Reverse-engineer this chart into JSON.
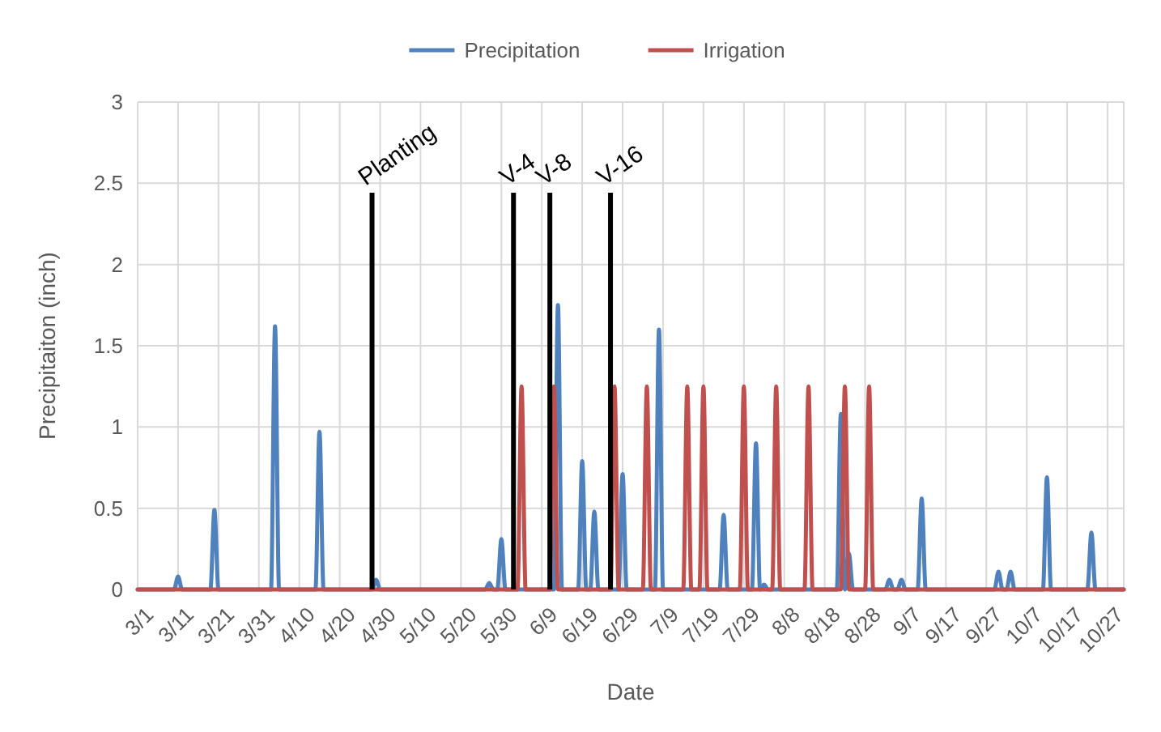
{
  "chart_data": {
    "type": "line",
    "xlabel": "Date",
    "ylabel": "Precipitaiton (inch)",
    "xlim": [
      "--03-01",
      "--10-31"
    ],
    "xticks": [
      {
        "value": "--03-01",
        "label": "3/1"
      },
      {
        "value": "--03-11",
        "label": "3/11"
      },
      {
        "value": "--03-21",
        "label": "3/21"
      },
      {
        "value": "--03-31",
        "label": "3/31"
      },
      {
        "value": "--04-10",
        "label": "4/10"
      },
      {
        "value": "--04-20",
        "label": "4/20"
      },
      {
        "value": "--04-30",
        "label": "4/30"
      },
      {
        "value": "--05-10",
        "label": "5/10"
      },
      {
        "value": "--05-20",
        "label": "5/20"
      },
      {
        "value": "--05-30",
        "label": "5/30"
      },
      {
        "value": "--06-09",
        "label": "6/9"
      },
      {
        "value": "--06-19",
        "label": "6/19"
      },
      {
        "value": "--06-29",
        "label": "6/29"
      },
      {
        "value": "--07-09",
        "label": "7/9"
      },
      {
        "value": "--07-19",
        "label": "7/19"
      },
      {
        "value": "--07-29",
        "label": "7/29"
      },
      {
        "value": "--08-08",
        "label": "8/8"
      },
      {
        "value": "--08-18",
        "label": "8/18"
      },
      {
        "value": "--08-28",
        "label": "8/28"
      },
      {
        "value": "--09-07",
        "label": "9/7"
      },
      {
        "value": "--09-17",
        "label": "9/17"
      },
      {
        "value": "--09-27",
        "label": "9/27"
      },
      {
        "value": "--10-07",
        "label": "10/7"
      },
      {
        "value": "--10-17",
        "label": "10/17"
      },
      {
        "value": "--10-27",
        "label": "10/27"
      }
    ],
    "ylim": [
      0,
      3
    ],
    "yticks": [
      0,
      0.5,
      1,
      1.5,
      2,
      2.5,
      3
    ],
    "grid": true,
    "legend": "top",
    "marker": "none",
    "line_style": "solid",
    "series": [
      {
        "name": "Precipitation",
        "color": "#4f81bd",
        "x": [
          "--03-01",
          "--03-10",
          "--03-11",
          "--03-12",
          "--03-19",
          "--03-20",
          "--03-21",
          "--04-03",
          "--04-04",
          "--04-05",
          "--04-14",
          "--04-15",
          "--04-16",
          "--04-28",
          "--04-29",
          "--04-30",
          "--05-26",
          "--05-27",
          "--05-28",
          "--05-29",
          "--05-30",
          "--05-31",
          "--06-12",
          "--06-13",
          "--06-14",
          "--06-18",
          "--06-19",
          "--06-20",
          "--06-21",
          "--06-22",
          "--06-23",
          "--06-28",
          "--06-29",
          "--06-30",
          "--07-07",
          "--07-08",
          "--07-09",
          "--07-23",
          "--07-24",
          "--07-25",
          "--07-31",
          "--08-01",
          "--08-02",
          "--08-03",
          "--08-04",
          "--08-21",
          "--08-22",
          "--08-23",
          "--08-24",
          "--08-25",
          "--09-02",
          "--09-03",
          "--09-04",
          "--09-05",
          "--09-06",
          "--09-07",
          "--09-10",
          "--09-11",
          "--09-12",
          "--09-29",
          "--09-30",
          "--10-01",
          "--10-02",
          "--10-03",
          "--10-04",
          "--10-11",
          "--10-12",
          "--10-13",
          "--10-22",
          "--10-23",
          "--10-24",
          "--10-31"
        ],
        "values": [
          0,
          0,
          0.08,
          0,
          0,
          0.49,
          0,
          0,
          1.62,
          0,
          0,
          0.97,
          0,
          0,
          0.06,
          0,
          0,
          0.04,
          0,
          0,
          0.31,
          0,
          0,
          1.75,
          0,
          0,
          0.79,
          0,
          0,
          0.48,
          0,
          0,
          0.71,
          0,
          0,
          1.6,
          0,
          0,
          0.46,
          0,
          0,
          0.9,
          0,
          0.03,
          0,
          0,
          1.08,
          0,
          0.22,
          0,
          0,
          0.06,
          0,
          0,
          0.06,
          0,
          0,
          0.56,
          0,
          0,
          0.11,
          0,
          0,
          0.11,
          0,
          0,
          0.69,
          0,
          0,
          0.35,
          0,
          0
        ]
      },
      {
        "name": "Irrigation",
        "color": "#c0504d",
        "x": [
          "--03-01",
          "--06-03",
          "--06-04",
          "--06-05",
          "--06-11",
          "--06-12",
          "--06-13",
          "--06-26",
          "--06-27",
          "--06-28",
          "--07-04",
          "--07-05",
          "--07-06",
          "--07-14",
          "--07-15",
          "--07-16",
          "--07-18",
          "--07-19",
          "--07-20",
          "--07-28",
          "--07-29",
          "--07-30",
          "--08-05",
          "--08-06",
          "--08-07",
          "--08-13",
          "--08-14",
          "--08-15",
          "--08-22",
          "--08-23",
          "--08-24",
          "--08-28",
          "--08-29",
          "--08-30",
          "--10-31"
        ],
        "values": [
          0,
          0,
          1.25,
          0,
          0,
          1.25,
          0,
          0,
          1.25,
          0,
          0,
          1.25,
          0,
          0,
          1.25,
          0,
          0,
          1.25,
          0,
          0,
          1.25,
          0,
          0,
          1.25,
          0,
          0,
          1.25,
          0,
          0,
          1.25,
          0,
          0,
          1.25,
          0,
          0
        ]
      }
    ],
    "ref_lines": [
      {
        "axis": "x",
        "value": "--04-28",
        "label": "Planting",
        "color": "#000000"
      },
      {
        "axis": "x",
        "value": "--06-02",
        "label": "V-4",
        "color": "#000000"
      },
      {
        "axis": "x",
        "value": "--06-11",
        "label": "V-8",
        "color": "#000000"
      },
      {
        "axis": "x",
        "value": "--06-26",
        "label": "V-16",
        "color": "#000000"
      }
    ]
  }
}
